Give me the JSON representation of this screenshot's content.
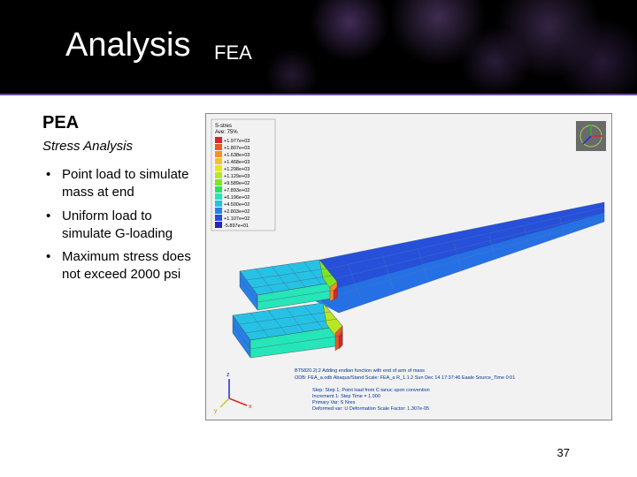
{
  "header": {
    "title_main": "Analysis",
    "title_sub": "FEA",
    "bg_color": "#000000",
    "divider_color": "#6b4a9c",
    "bokeh_color": "#7850a0"
  },
  "section": {
    "heading": "PEA",
    "subheading": "Stress Analysis",
    "bullets": [
      "Point load to simulate mass at end",
      "Uniform load to simulate G-loading",
      "Maximum stress does not exceed 2000 psi"
    ]
  },
  "figure": {
    "legend_title": "S-stres",
    "legend_unit": "Ave: 75%",
    "legend_values": [
      "+1.977e+03",
      "+1.807e+03",
      "+1.638e+03",
      "+1.468e+03",
      "+1.298e+03",
      "+1.129e+03",
      "+9.589e+02",
      "+7.893e+02",
      "+6.196e+02",
      "+4.500e+02",
      "+2.803e+02",
      "+1.107e+02",
      "-5.897e+01"
    ],
    "legend_colors": [
      "#d92626",
      "#e85a26",
      "#f58e26",
      "#f5c226",
      "#e5e526",
      "#b8e526",
      "#7de526",
      "#26e55a",
      "#26e5b8",
      "#26c2e5",
      "#2680e5",
      "#264de5",
      "#2626b8"
    ],
    "caption_lines": [
      "BT5820.2|:2  Adding endian function with end of arm of mass",
      "ODB: FEA_a.odb   Abaqus/Stand   Scale: FEA_a   R_1.1.2   Sun Dec 14 17:37:46 Eaale   Source_Time 0:01",
      "Step: Step 1, Point load from C tanuc upon convention",
      "Increment   1: Step Time = 1.000",
      "Primary Var: S Nres",
      "Deformed var: U   Deformation Scale Factor: 1.307e-05"
    ],
    "triad": {
      "x": "x",
      "y": "y",
      "z": "z"
    },
    "bg_color": "#f2f2f2",
    "orientation_cube_bg": "#6a6a6a"
  },
  "page_number": "37"
}
